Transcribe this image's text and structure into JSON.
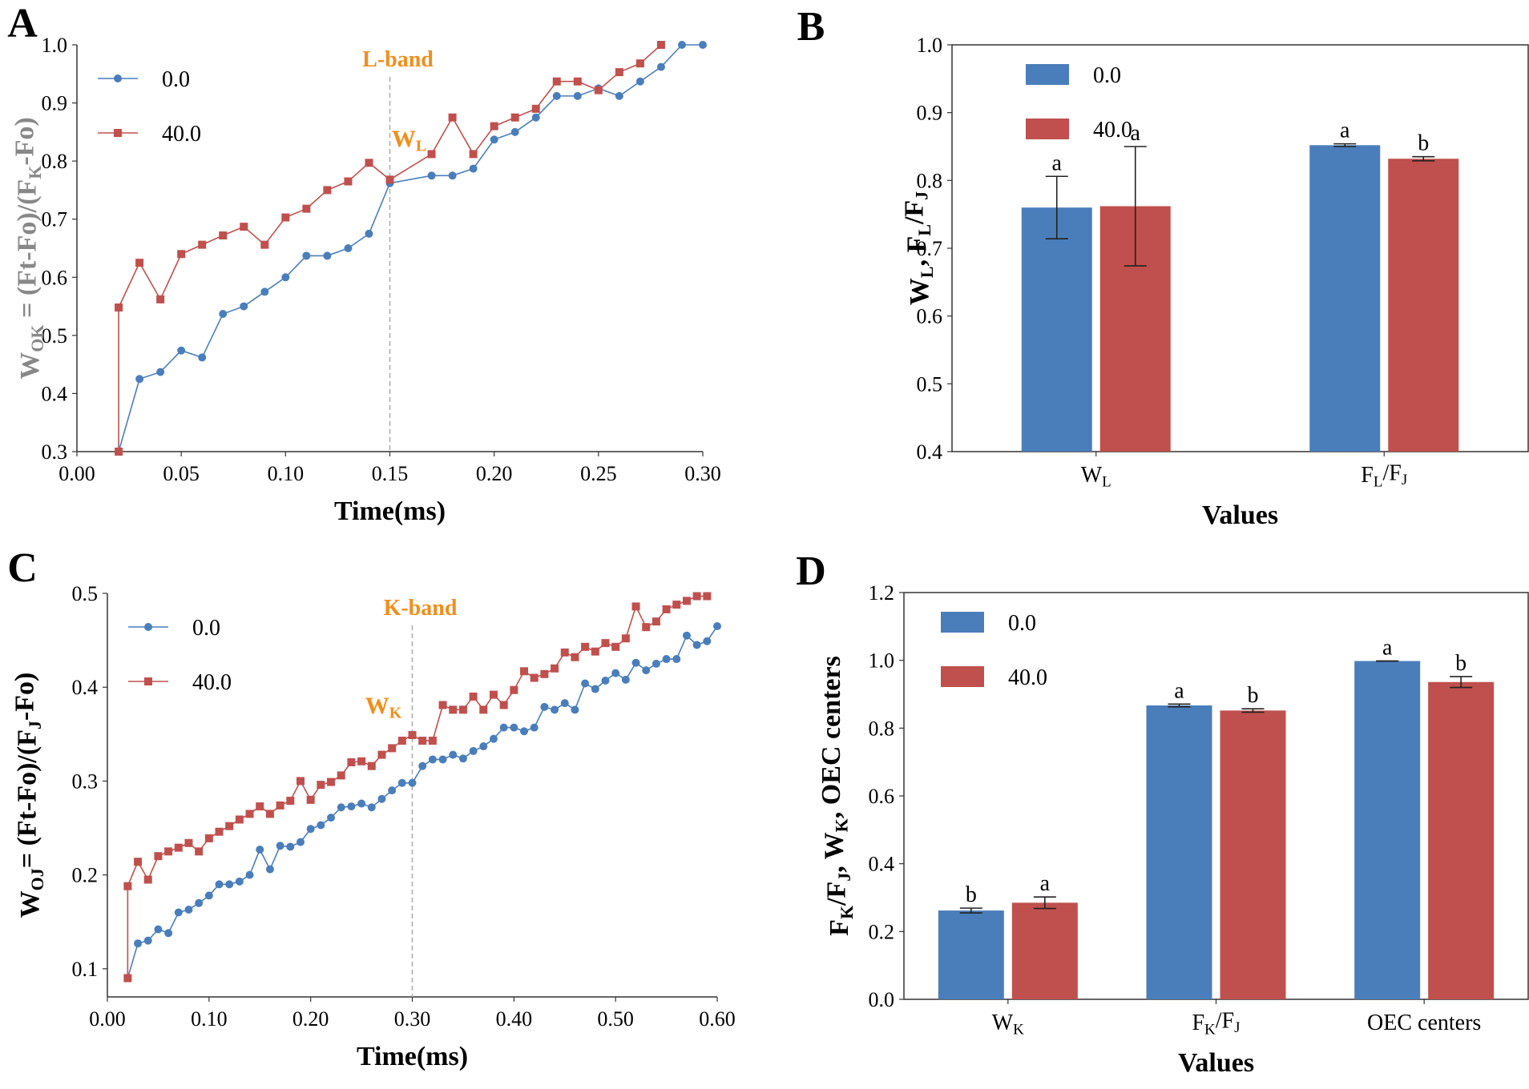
{
  "colors": {
    "control": "#4a7ebb",
    "treated": "#c0504d",
    "band_label": "#f28e1c",
    "axis": "#333333"
  },
  "panels": [
    {
      "type": "line",
      "letter": "A",
      "title": "",
      "xlabel": "Time(ms)",
      "ylabel": {
        "base": "W",
        "sub": "OK",
        "rest": " = (Ft-Fo)/(F",
        "sub2": "K",
        "rest2": "-Fo)"
      },
      "xlim": [
        0.0,
        0.3
      ],
      "ylim": [
        0.3,
        1.0
      ],
      "xticks": [
        "0.00",
        "0.05",
        "0.10",
        "0.15",
        "0.20",
        "0.25",
        "0.30"
      ],
      "xtick_values": [
        0.0,
        0.05,
        0.1,
        0.15,
        0.2,
        0.25,
        0.3
      ],
      "yticks": [
        "0.3",
        "0.4",
        "0.5",
        "0.6",
        "0.7",
        "0.8",
        "0.9",
        "1.0"
      ],
      "ytick_values": [
        0.3,
        0.4,
        0.5,
        0.6,
        0.7,
        0.8,
        0.9,
        1.0
      ],
      "band_x": 0.15,
      "band_label": "L-band",
      "point_label": {
        "base": "W",
        "sub": "L"
      },
      "legend": [
        "0.0",
        "40.0"
      ],
      "series": [
        {
          "name": "0.0",
          "marker": "circle",
          "x": [
            0.02,
            0.03,
            0.04,
            0.05,
            0.06,
            0.07,
            0.08,
            0.09,
            0.1,
            0.11,
            0.12,
            0.13,
            0.14,
            0.15,
            0.17,
            0.18,
            0.19,
            0.2,
            0.21,
            0.22,
            0.23,
            0.24,
            0.25,
            0.26,
            0.27,
            0.28,
            0.29,
            0.3
          ],
          "y": [
            0.3,
            0.425,
            0.437,
            0.474,
            0.462,
            0.537,
            0.55,
            0.575,
            0.6,
            0.637,
            0.637,
            0.65,
            0.675,
            0.762,
            0.775,
            0.775,
            0.787,
            0.837,
            0.85,
            0.875,
            0.912,
            0.912,
            0.925,
            0.912,
            0.937,
            0.962,
            1.0,
            1.0
          ]
        },
        {
          "name": "40.0",
          "marker": "square",
          "x": [
            0.02,
            0.02,
            0.03,
            0.04,
            0.05,
            0.06,
            0.07,
            0.08,
            0.09,
            0.1,
            0.11,
            0.12,
            0.13,
            0.14,
            0.15,
            0.17,
            0.18,
            0.19,
            0.2,
            0.21,
            0.22,
            0.23,
            0.24,
            0.25,
            0.26,
            0.27,
            0.28
          ],
          "y": [
            0.3,
            0.548,
            0.625,
            0.562,
            0.64,
            0.656,
            0.672,
            0.687,
            0.656,
            0.703,
            0.718,
            0.75,
            0.765,
            0.797,
            0.768,
            0.812,
            0.875,
            0.812,
            0.86,
            0.875,
            0.89,
            0.937,
            0.937,
            0.922,
            0.953,
            0.968,
            1.0
          ]
        }
      ]
    },
    {
      "type": "bar",
      "letter": "B",
      "xlabel": "Values",
      "ylabel_parts": [
        {
          "base": "W",
          "sub": "L"
        },
        {
          "base": ", F",
          "sub": "L"
        },
        {
          "base": "/F",
          "sub": "J"
        }
      ],
      "ylim": [
        0.4,
        1.0
      ],
      "yticks": [
        "0.4",
        "0.5",
        "0.6",
        "0.7",
        "0.8",
        "0.9",
        "1.0"
      ],
      "ytick_values": [
        0.4,
        0.5,
        0.6,
        0.7,
        0.8,
        0.9,
        1.0
      ],
      "categories": [
        {
          "base": "W",
          "sub": "L",
          "tail": "",
          "sub2": ""
        },
        {
          "base": "F",
          "sub": "L",
          "tail": "/F",
          "sub2": "J"
        }
      ],
      "legend": [
        "0.0",
        "40.0"
      ],
      "series": [
        {
          "name": "0.0",
          "values": [
            0.76,
            0.852
          ],
          "errors": [
            0.046,
            0.002
          ],
          "letters": [
            "a",
            "a"
          ]
        },
        {
          "name": "40.0",
          "values": [
            0.762,
            0.832
          ],
          "errors": [
            0.088,
            0.003
          ],
          "letters": [
            "a",
            "b"
          ]
        }
      ]
    },
    {
      "type": "line",
      "letter": "C",
      "xlabel": "Time(ms)",
      "ylabel": {
        "base": "W",
        "sub": "OJ",
        "rest": "= (Ft-Fo)/(F",
        "sub2": "J",
        "rest2": "-Fo)"
      },
      "xlim": [
        0.0,
        0.6
      ],
      "ylim": [
        0.07,
        0.5
      ],
      "xticks": [
        "0.00",
        "0.10",
        "0.20",
        "0.30",
        "0.40",
        "0.50",
        "0.60"
      ],
      "xtick_values": [
        0.0,
        0.1,
        0.2,
        0.3,
        0.4,
        0.5,
        0.6
      ],
      "yticks": [
        "0.1",
        "0.2",
        "0.3",
        "0.4",
        "0.5"
      ],
      "ytick_values": [
        0.1,
        0.2,
        0.3,
        0.4,
        0.5
      ],
      "band_x": 0.3,
      "band_label": "K-band",
      "point_label": {
        "base": "W",
        "sub": "K"
      },
      "legend": [
        "0.0",
        "40.0"
      ],
      "series": [
        {
          "name": "0.0",
          "marker": "circle",
          "x": [
            0.02,
            0.03,
            0.04,
            0.05,
            0.06,
            0.07,
            0.08,
            0.09,
            0.1,
            0.11,
            0.12,
            0.13,
            0.14,
            0.15,
            0.16,
            0.17,
            0.18,
            0.19,
            0.2,
            0.21,
            0.22,
            0.23,
            0.24,
            0.25,
            0.26,
            0.27,
            0.28,
            0.29,
            0.3,
            0.31,
            0.32,
            0.33,
            0.34,
            0.35,
            0.36,
            0.37,
            0.38,
            0.39,
            0.4,
            0.41,
            0.42,
            0.43,
            0.44,
            0.45,
            0.46,
            0.47,
            0.48,
            0.49,
            0.5,
            0.51,
            0.52,
            0.53,
            0.54,
            0.55,
            0.56,
            0.57,
            0.58,
            0.59,
            0.6
          ],
          "y": [
            0.09,
            0.127,
            0.13,
            0.142,
            0.138,
            0.16,
            0.163,
            0.17,
            0.178,
            0.19,
            0.19,
            0.193,
            0.2,
            0.227,
            0.206,
            0.231,
            0.23,
            0.235,
            0.249,
            0.253,
            0.261,
            0.272,
            0.273,
            0.276,
            0.272,
            0.281,
            0.29,
            0.298,
            0.298,
            0.316,
            0.323,
            0.323,
            0.328,
            0.324,
            0.332,
            0.337,
            0.345,
            0.357,
            0.357,
            0.353,
            0.357,
            0.379,
            0.376,
            0.383,
            0.376,
            0.404,
            0.398,
            0.407,
            0.415,
            0.408,
            0.426,
            0.418,
            0.425,
            0.43,
            0.43,
            0.455,
            0.445,
            0.449,
            0.465
          ]
        },
        {
          "name": "40.0",
          "marker": "square",
          "x": [
            0.02,
            0.02,
            0.03,
            0.04,
            0.05,
            0.06,
            0.07,
            0.08,
            0.09,
            0.1,
            0.11,
            0.12,
            0.13,
            0.14,
            0.15,
            0.16,
            0.17,
            0.18,
            0.19,
            0.2,
            0.21,
            0.22,
            0.23,
            0.24,
            0.25,
            0.26,
            0.27,
            0.28,
            0.29,
            0.3,
            0.31,
            0.32,
            0.33,
            0.34,
            0.35,
            0.36,
            0.37,
            0.38,
            0.39,
            0.4,
            0.41,
            0.42,
            0.43,
            0.44,
            0.45,
            0.46,
            0.47,
            0.48,
            0.49,
            0.5,
            0.51,
            0.52,
            0.53,
            0.54,
            0.55,
            0.56,
            0.57,
            0.58,
            0.59
          ],
          "y": [
            0.09,
            0.188,
            0.214,
            0.195,
            0.22,
            0.225,
            0.229,
            0.234,
            0.225,
            0.239,
            0.246,
            0.252,
            0.259,
            0.265,
            0.273,
            0.265,
            0.274,
            0.279,
            0.3,
            0.28,
            0.296,
            0.299,
            0.306,
            0.32,
            0.321,
            0.316,
            0.328,
            0.335,
            0.343,
            0.349,
            0.343,
            0.343,
            0.381,
            0.376,
            0.376,
            0.39,
            0.376,
            0.392,
            0.381,
            0.397,
            0.417,
            0.41,
            0.414,
            0.42,
            0.437,
            0.432,
            0.443,
            0.438,
            0.447,
            0.443,
            0.452,
            0.486,
            0.464,
            0.47,
            0.483,
            0.488,
            0.492,
            0.497,
            0.497
          ]
        }
      ]
    },
    {
      "type": "bar",
      "letter": "D",
      "xlabel": "Values",
      "ylabel_parts": [
        {
          "base": "F",
          "sub": "K"
        },
        {
          "base": "/F",
          "sub": "J"
        },
        {
          "base": ",  W",
          "sub": "K"
        },
        {
          "base": ",  OEC centers",
          "sub": ""
        }
      ],
      "ylim": [
        0.0,
        1.2
      ],
      "yticks": [
        "0.0",
        "0.2",
        "0.4",
        "0.6",
        "0.8",
        "1.0",
        "1.2"
      ],
      "ytick_values": [
        0.0,
        0.2,
        0.4,
        0.6,
        0.8,
        1.0,
        1.2
      ],
      "categories": [
        {
          "base": "W",
          "sub": "K",
          "tail": "",
          "sub2": ""
        },
        {
          "base": "F",
          "sub": "K",
          "tail": "/F",
          "sub2": "J"
        },
        {
          "base": "OEC centers",
          "sub": "",
          "tail": "",
          "sub2": ""
        }
      ],
      "legend": [
        "0.0",
        "40.0"
      ],
      "series": [
        {
          "name": "0.0",
          "values": [
            0.262,
            0.867,
            0.998
          ],
          "errors": [
            0.007,
            0.004,
            0.0
          ],
          "letters": [
            "b",
            "a",
            "a"
          ]
        },
        {
          "name": "40.0",
          "values": [
            0.285,
            0.852,
            0.936
          ],
          "errors": [
            0.017,
            0.005,
            0.016
          ],
          "letters": [
            "a",
            "b",
            "b"
          ]
        }
      ]
    }
  ]
}
